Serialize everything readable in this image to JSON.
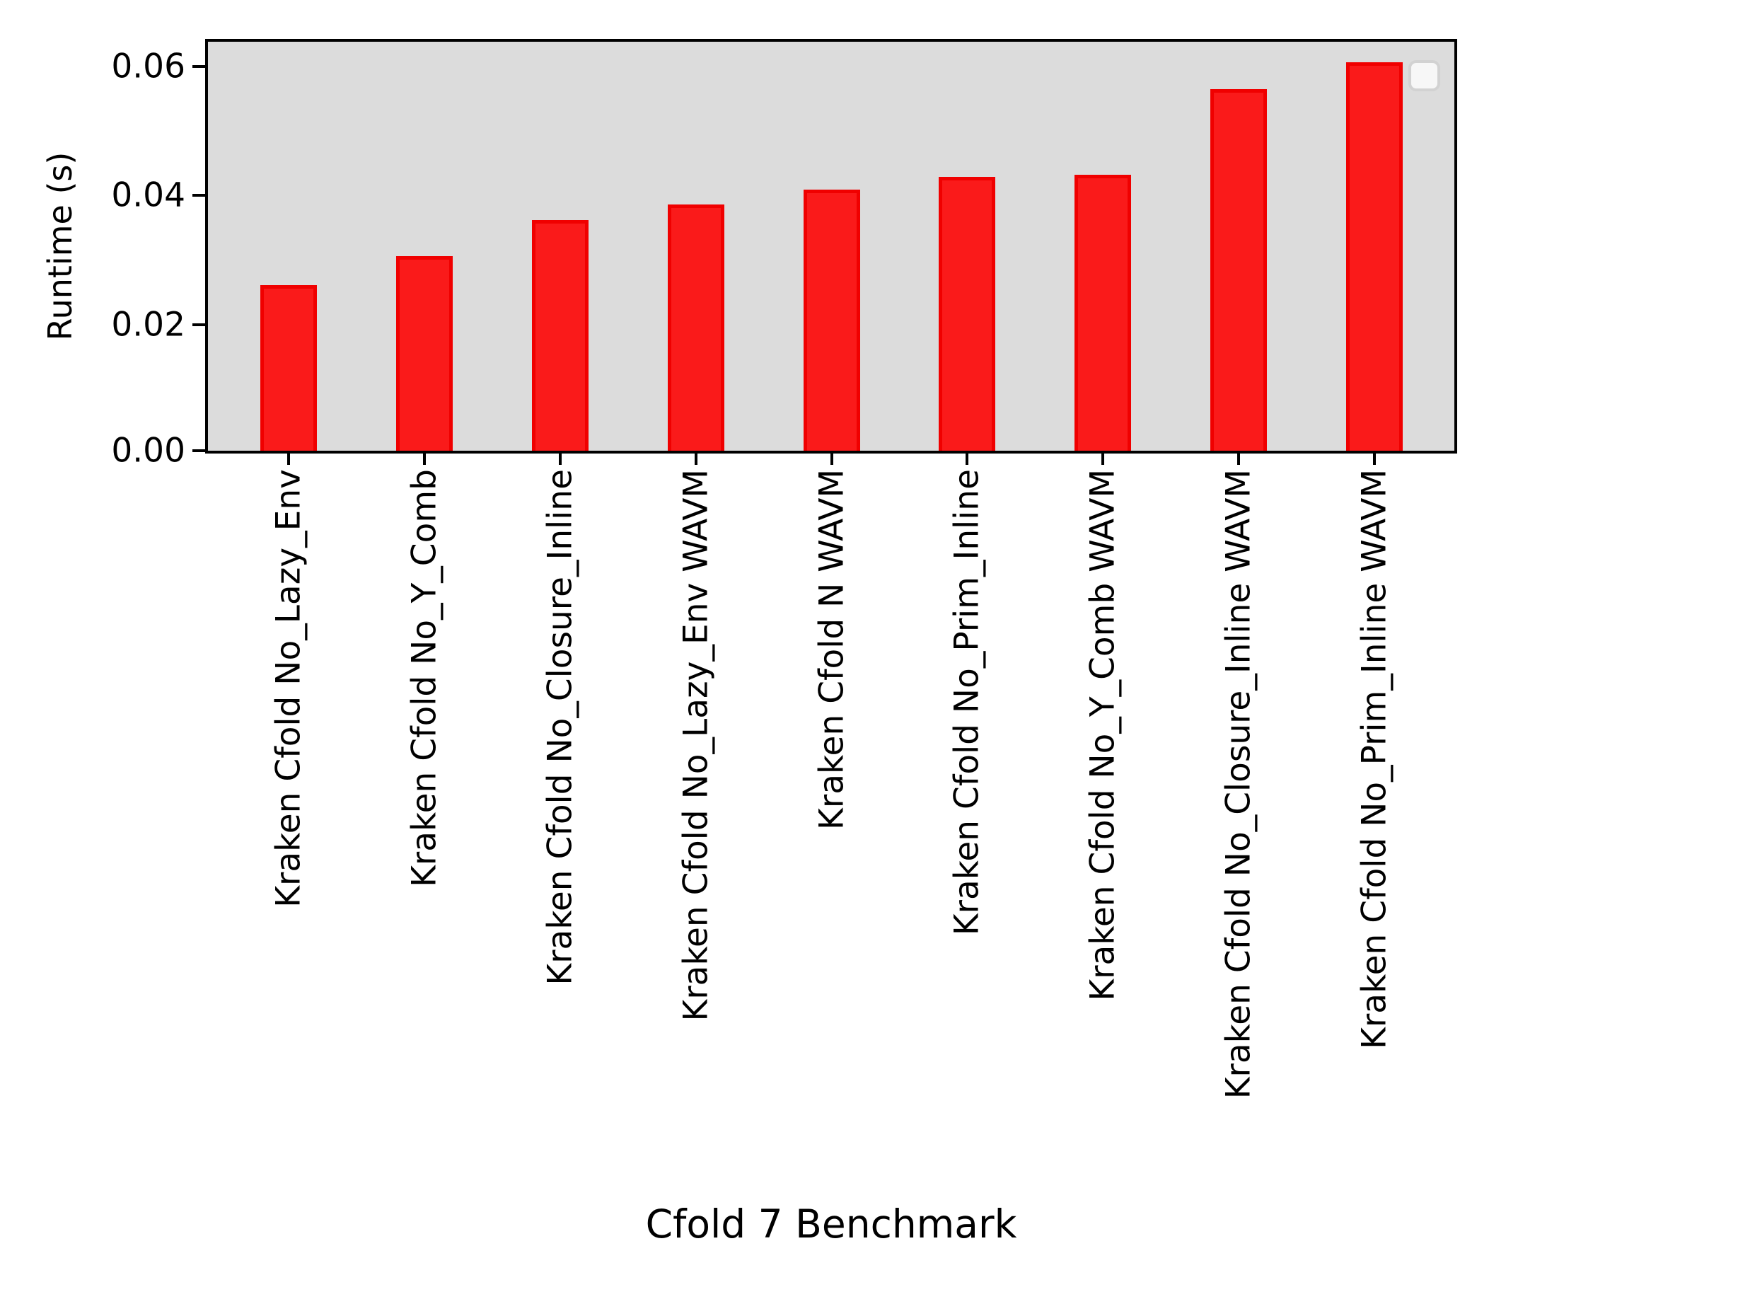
{
  "chart_data": {
    "type": "bar",
    "title": "",
    "xlabel": "Cfold 7 Benchmark",
    "ylabel": "Runtime (s)",
    "categories": [
      "Kraken Cfold No_Lazy_Env",
      "Kraken Cfold No_Y_Comb",
      "Kraken Cfold No_Closure_Inline",
      "Kraken Cfold No_Lazy_Env WAVM",
      "Kraken Cfold N WAVM",
      "Kraken Cfold No_Prim_Inline",
      "Kraken Cfold No_Y_Comb WAVM",
      "Kraken Cfold No_Closure_Inline WAVM",
      "Kraken Cfold No_Prim_Inline WAVM"
    ],
    "values": [
      0.026,
      0.0306,
      0.0363,
      0.0387,
      0.0411,
      0.043,
      0.0434,
      0.0568,
      0.0611
    ],
    "ytick_values": [
      0.0,
      0.02,
      0.04,
      0.06
    ],
    "ytick_labels": [
      "0.00",
      "0.02",
      "0.04",
      "0.06"
    ],
    "ylim": [
      0,
      0.0643
    ],
    "grid": false,
    "legend": {
      "visible": true,
      "entries": [],
      "position": "upper-right"
    },
    "colors": {
      "bar_fill": "#fa1a1a",
      "bar_edge": "#f00000",
      "plot_background": "#dcdcdc",
      "spine": "#000000",
      "legend_fill": "#f7f7f7",
      "legend_border": "#d2d2d2",
      "text": "#000000"
    }
  }
}
